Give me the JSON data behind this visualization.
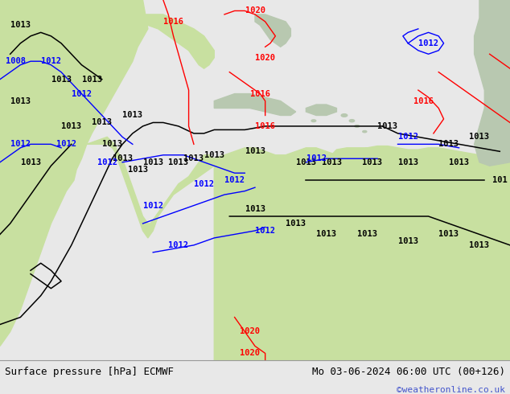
{
  "fig_width": 6.34,
  "fig_height": 4.9,
  "dpi": 100,
  "background_color": "#e8e8e8",
  "ocean_color": "#e0e0e0",
  "land_color": "#c8e0a0",
  "land_dark_color": "#a8c878",
  "footer_left": "Surface pressure [hPa] ECMWF",
  "footer_right": "Mo 03-06-2024 06:00 UTC (00+126)",
  "footer_url": "©weatheronline.co.uk",
  "footer_font_size": 9,
  "footer_url_color": "#4455cc",
  "footer_text_color": "#000000"
}
